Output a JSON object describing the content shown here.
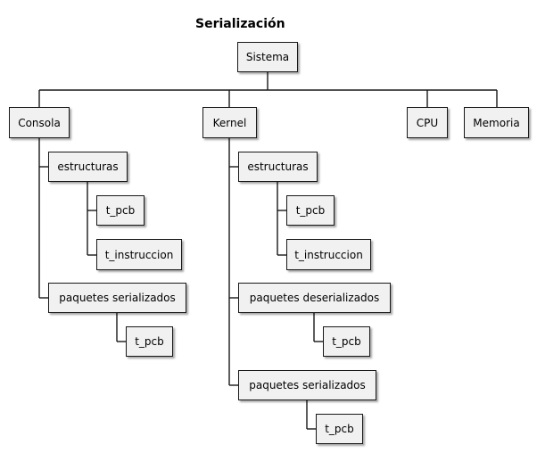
{
  "diagram": {
    "title": "Serialización",
    "root": "Sistema",
    "consola": {
      "label": "Consola",
      "estructuras": {
        "label": "estructuras",
        "children": [
          "t_pcb",
          "t_instruccion"
        ]
      },
      "paquetes_serializados": {
        "label": "paquetes serializados",
        "children": [
          "t_pcb"
        ]
      }
    },
    "kernel": {
      "label": "Kernel",
      "estructuras": {
        "label": "estructuras",
        "children": [
          "t_pcb",
          "t_instruccion"
        ]
      },
      "paquetes_deserializados": {
        "label": "paquetes deserializados",
        "children": [
          "t_pcb"
        ]
      },
      "paquetes_serializados": {
        "label": "paquetes serializados",
        "children": [
          "t_pcb"
        ]
      }
    },
    "cpu": "CPU",
    "memoria": "Memoria"
  }
}
